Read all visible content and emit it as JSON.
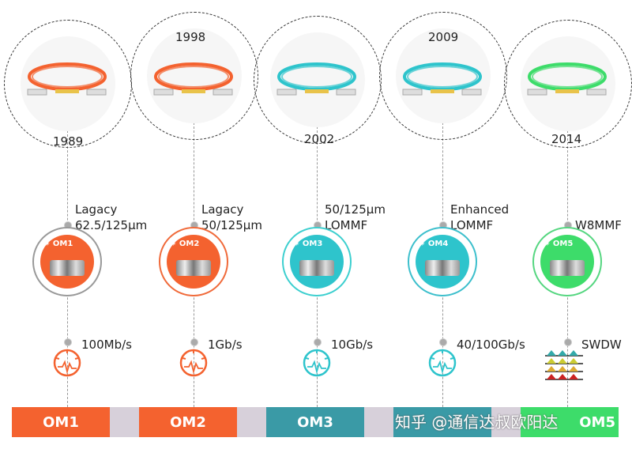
{
  "generations": [
    {
      "name": "OM1",
      "year": "1989",
      "spec_line1": "Lagacy",
      "spec_line2": "62.5/125µm",
      "speed": "100Mb/s",
      "color": "#f4622f",
      "ring": "#999999",
      "spool": "#f4622f",
      "speed_icon": "speedometer-icon"
    },
    {
      "name": "OM2",
      "year": "1998",
      "spec_line1": "Lagacy",
      "spec_line2": "50/125µm",
      "speed": "1Gb/s",
      "color": "#f4622f",
      "ring": "#f06a3a",
      "spool": "#f4622f",
      "speed_icon": "speedometer-icon"
    },
    {
      "name": "OM3",
      "year": "2002",
      "spec_line1": "50/125µm",
      "spec_line2": "LOMMF",
      "speed": "10Gb/s",
      "color": "#3a9aa6",
      "ring": "#3ccfcf",
      "spool": "#2ec4cc",
      "speed_icon": "speedometer-icon"
    },
    {
      "name": "OM4",
      "year": "2009",
      "spec_line1": "Enhanced",
      "spec_line2": "LOMMF",
      "speed": "40/100Gb/s",
      "color": "#3a9aa6",
      "ring": "#3cbfcc",
      "spool": "#2ec4cc",
      "speed_icon": "speedometer-icon"
    },
    {
      "name": "OM5",
      "year": "2014",
      "spec_line1": "",
      "spec_line2": "W8MMF",
      "speed": "SWDW",
      "color": "#3ddc6a",
      "ring": "#55d680",
      "spool": "#3ddc6a",
      "speed_icon": "wavelength-icon"
    }
  ],
  "bar_labels": [
    "OM1",
    "OM2",
    "OM3",
    "",
    "OM5"
  ],
  "watermark": "知乎 @通信达叔欧阳达"
}
